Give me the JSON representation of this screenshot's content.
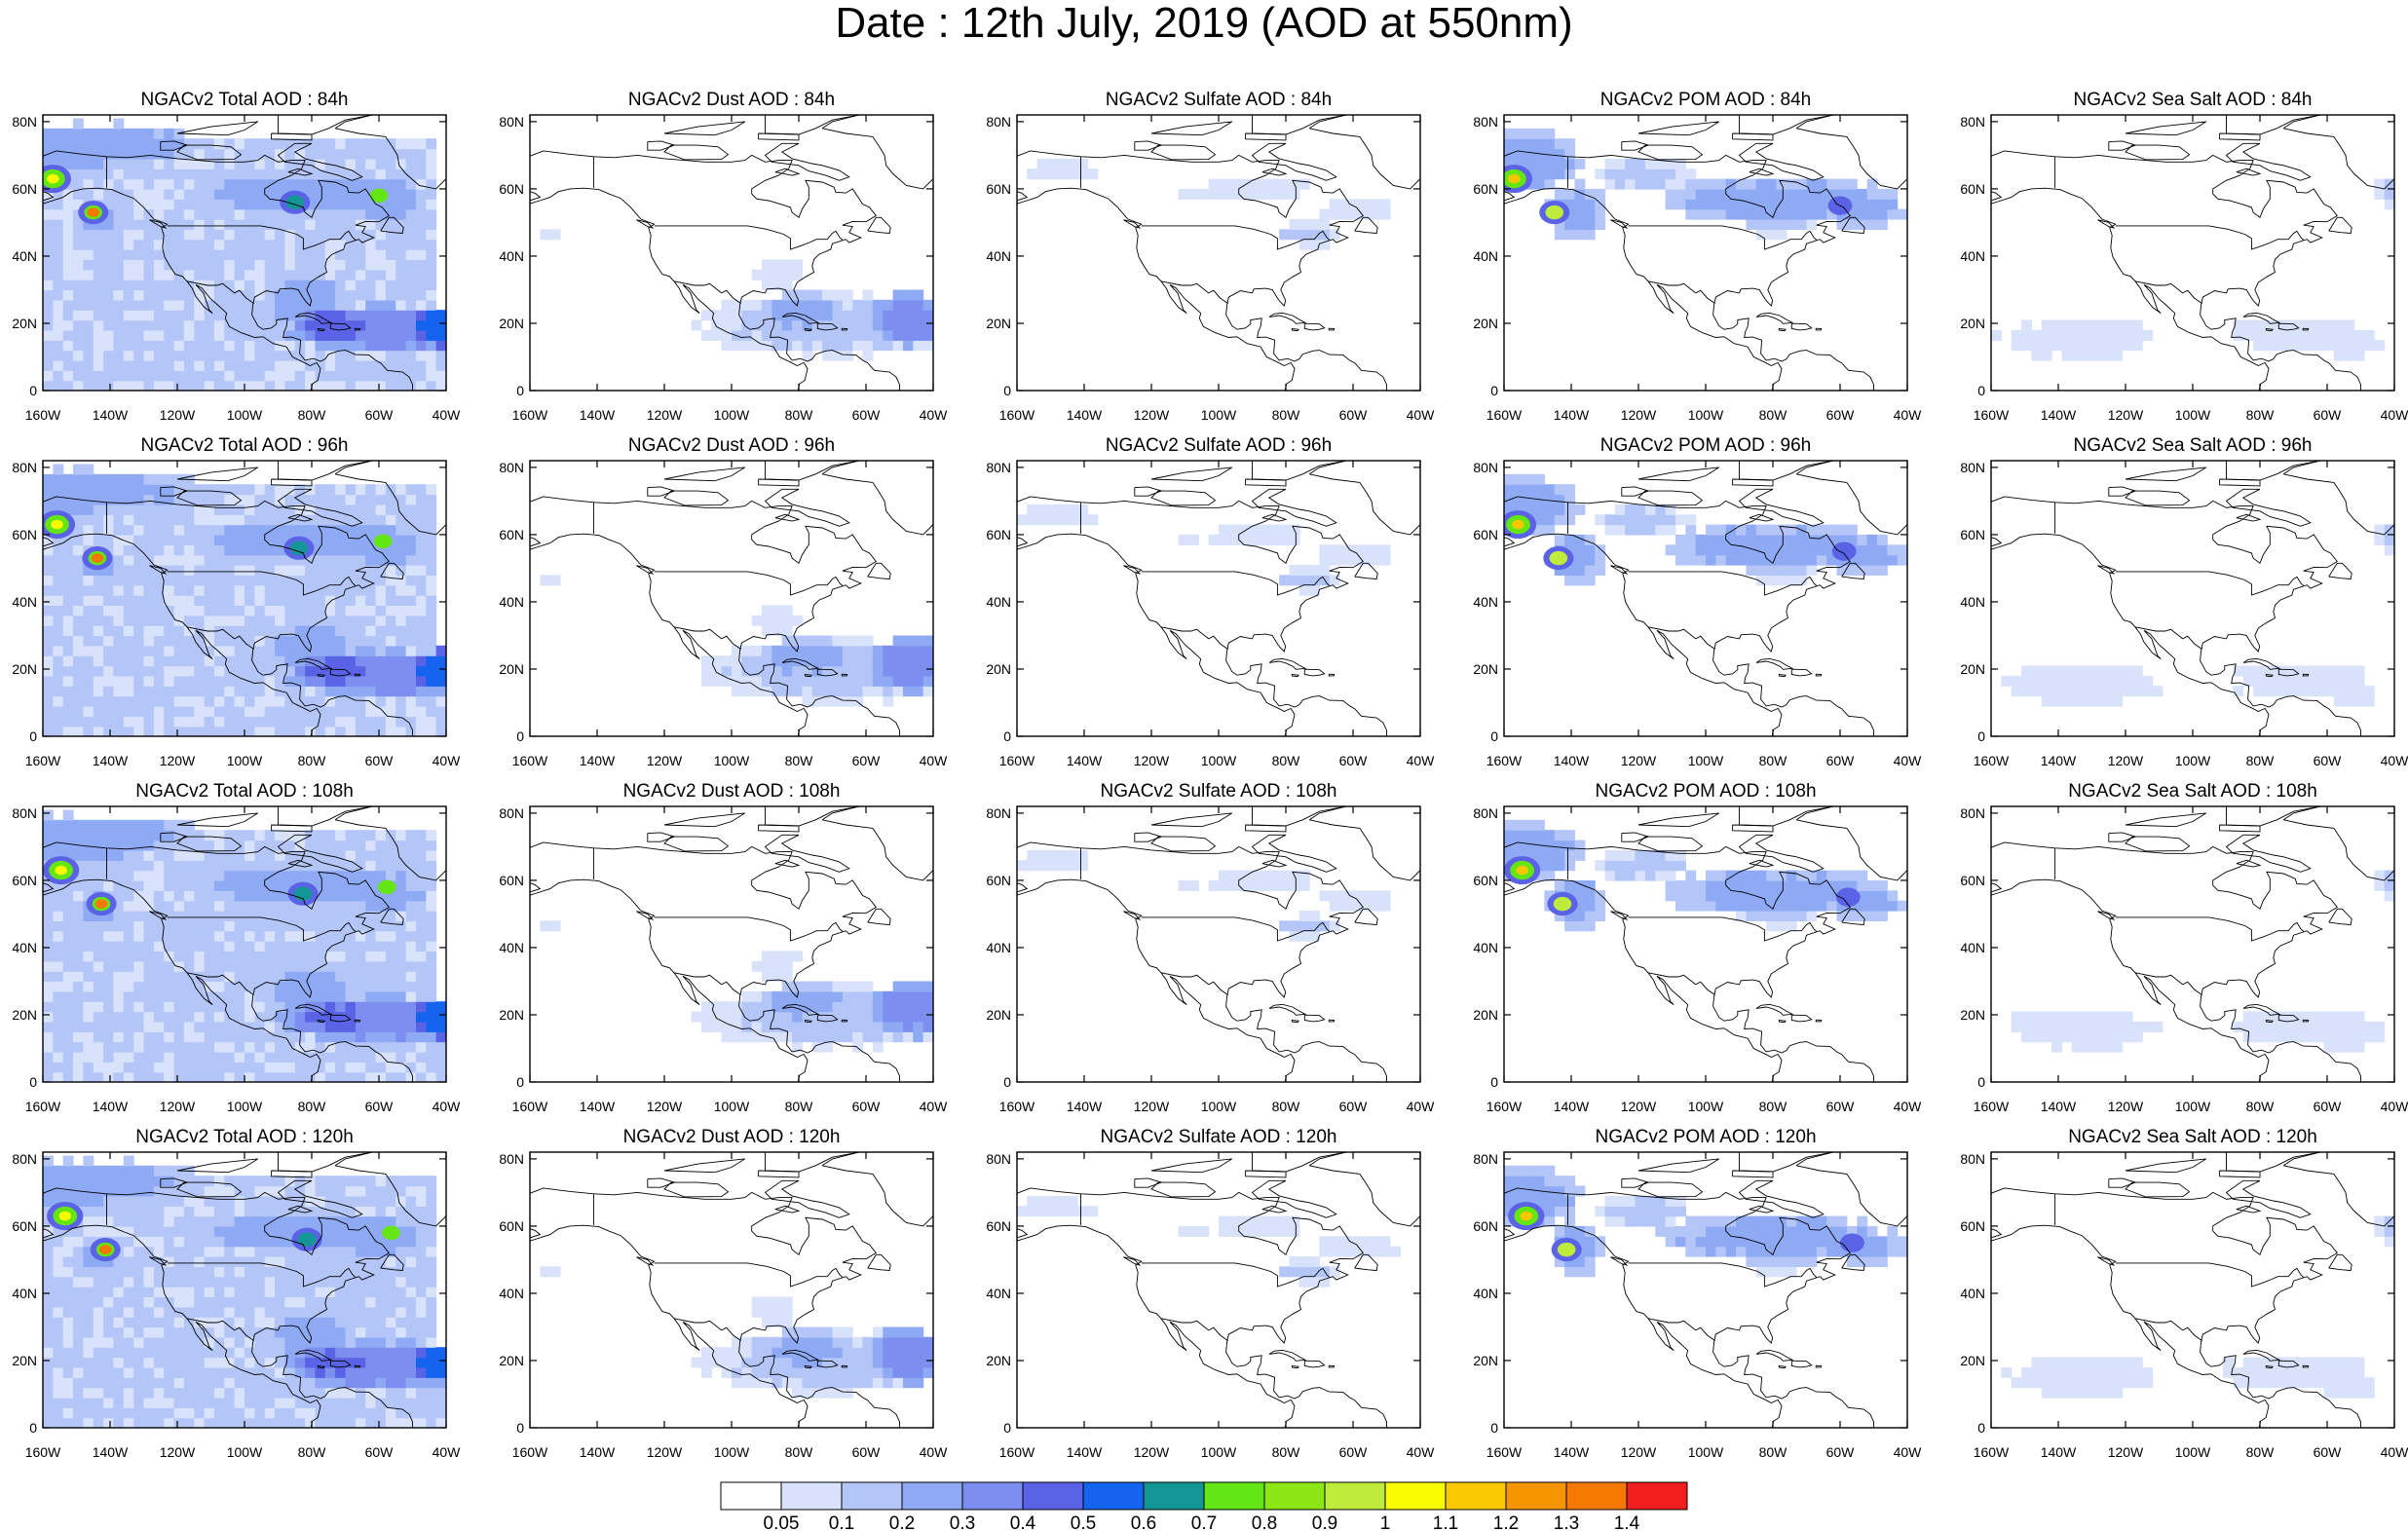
{
  "title": "Date : 12th July, 2019 (AOD at 550nm)",
  "rows": [
    {
      "hour": 84,
      "titles": [
        "NGACv2 Total AOD : 84h",
        "NGACv2 Dust AOD : 84h",
        "NGACv2 Sulfate AOD : 84h",
        "NGACv2 POM AOD : 84h",
        "NGACv2 Sea Salt AOD : 84h"
      ]
    },
    {
      "hour": 96,
      "titles": [
        "NGACv2 Total AOD : 96h",
        "NGACv2 Dust AOD : 96h",
        "NGACv2 Sulfate AOD : 96h",
        "NGACv2 POM AOD : 96h",
        "NGACv2 Sea Salt AOD : 96h"
      ]
    },
    {
      "hour": 108,
      "titles": [
        "NGACv2 Total AOD : 108h",
        "NGACv2 Dust AOD : 108h",
        "NGACv2 Sulfate AOD : 108h",
        "NGACv2 POM AOD : 108h",
        "NGACv2 Sea Salt AOD : 108h"
      ]
    },
    {
      "hour": 120,
      "titles": [
        "NGACv2 Total AOD : 120h",
        "NGACv2 Dust AOD : 120h",
        "NGACv2 Sulfate AOD : 120h",
        "NGACv2 POM AOD : 120h",
        "NGACv2 Sea Salt  AOD : 120h"
      ]
    }
  ],
  "lon_ticks": [
    "160W",
    "140W",
    "120W",
    "100W",
    "80W",
    "60W",
    "40W"
  ],
  "lat_ticks": [
    "0",
    "20N",
    "40N",
    "60N",
    "80N"
  ],
  "colorbar": {
    "colors": [
      "#ffffff",
      "#d8e2fb",
      "#b4c6f8",
      "#8eaaf5",
      "#7c8ff1",
      "#5a62e6",
      "#1464f0",
      "#149696",
      "#64e614",
      "#8ce614",
      "#beeb3c",
      "#fafa00",
      "#fac800",
      "#f59600",
      "#f57800",
      "#f01e1e"
    ],
    "labels": [
      "0.05",
      "0.1",
      "0.2",
      "0.3",
      "0.4",
      "0.5",
      "0.6",
      "0.7",
      "0.8",
      "0.9",
      "1",
      "1.1",
      "1.2",
      "1.3",
      "1.4"
    ]
  }
}
